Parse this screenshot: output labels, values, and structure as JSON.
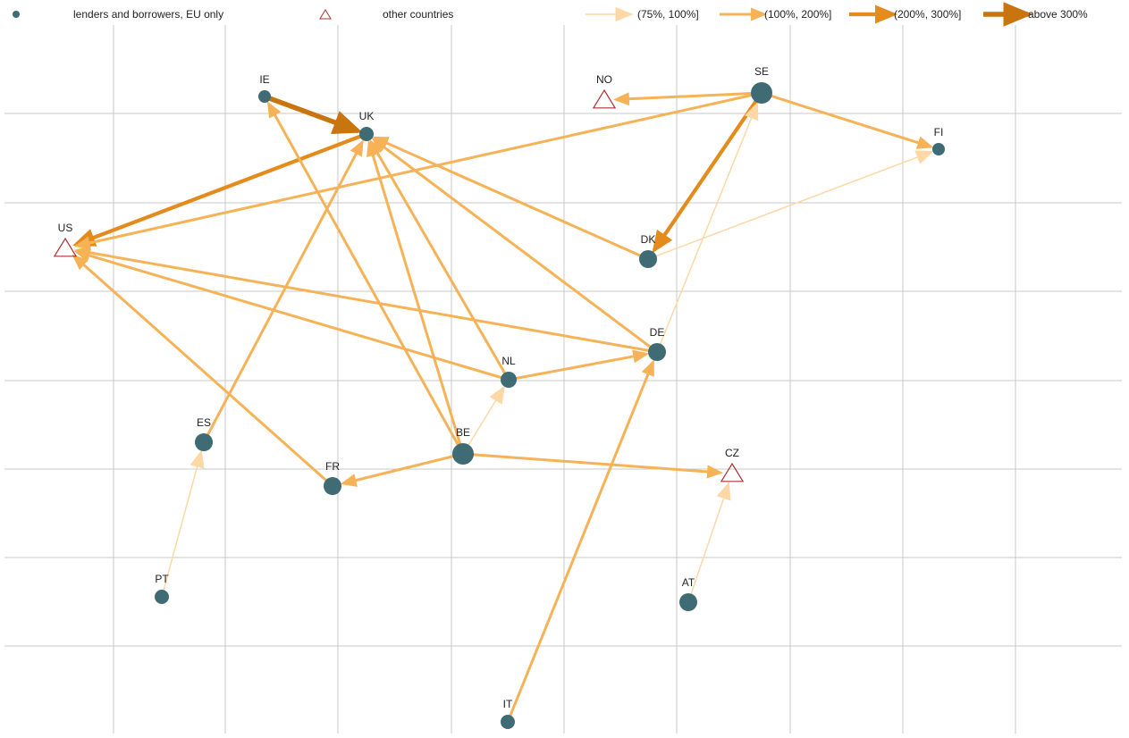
{
  "legend": {
    "eu": "lenders and borrowers, EU only",
    "other": "other countries",
    "bands": [
      "(75%, 100%]",
      "(100%, 200%]",
      "(200%, 300%]",
      "above 300%"
    ]
  },
  "nodes": [
    {
      "label": "IE",
      "kind": "eu"
    },
    {
      "label": "UK",
      "kind": "eu"
    },
    {
      "label": "NO",
      "kind": "other"
    },
    {
      "label": "SE",
      "kind": "eu"
    },
    {
      "label": "FI",
      "kind": "eu"
    },
    {
      "label": "US",
      "kind": "other"
    },
    {
      "label": "DK",
      "kind": "eu"
    },
    {
      "label": "DE",
      "kind": "eu"
    },
    {
      "label": "NL",
      "kind": "eu"
    },
    {
      "label": "ES",
      "kind": "eu"
    },
    {
      "label": "BE",
      "kind": "eu"
    },
    {
      "label": "FR",
      "kind": "eu"
    },
    {
      "label": "CZ",
      "kind": "other"
    },
    {
      "label": "PT",
      "kind": "eu"
    },
    {
      "label": "AT",
      "kind": "eu"
    },
    {
      "label": "IT",
      "kind": "eu"
    }
  ],
  "edges": [
    {
      "from": 0,
      "to": 1,
      "band": 3
    },
    {
      "from": 1,
      "to": 5,
      "band": 2
    },
    {
      "from": 3,
      "to": 2,
      "band": 1
    },
    {
      "from": 3,
      "to": 4,
      "band": 1
    },
    {
      "from": 3,
      "to": 5,
      "band": 1
    },
    {
      "from": 3,
      "to": 6,
      "band": 2
    },
    {
      "from": 6,
      "to": 4,
      "band": 0
    },
    {
      "from": 6,
      "to": 1,
      "band": 1
    },
    {
      "from": 7,
      "to": 1,
      "band": 1
    },
    {
      "from": 7,
      "to": 5,
      "band": 1
    },
    {
      "from": 7,
      "to": 3,
      "band": 0
    },
    {
      "from": 8,
      "to": 1,
      "band": 1
    },
    {
      "from": 8,
      "to": 5,
      "band": 1
    },
    {
      "from": 8,
      "to": 7,
      "band": 1
    },
    {
      "from": 10,
      "to": 1,
      "band": 1
    },
    {
      "from": 10,
      "to": 0,
      "band": 1
    },
    {
      "from": 10,
      "to": 11,
      "band": 1
    },
    {
      "from": 10,
      "to": 12,
      "band": 1
    },
    {
      "from": 10,
      "to": 8,
      "band": 0
    },
    {
      "from": 11,
      "to": 5,
      "band": 1
    },
    {
      "from": 9,
      "to": 1,
      "band": 1
    },
    {
      "from": 13,
      "to": 9,
      "band": 0
    },
    {
      "from": 14,
      "to": 12,
      "band": 0
    },
    {
      "from": 15,
      "to": 7,
      "band": 1
    }
  ]
}
